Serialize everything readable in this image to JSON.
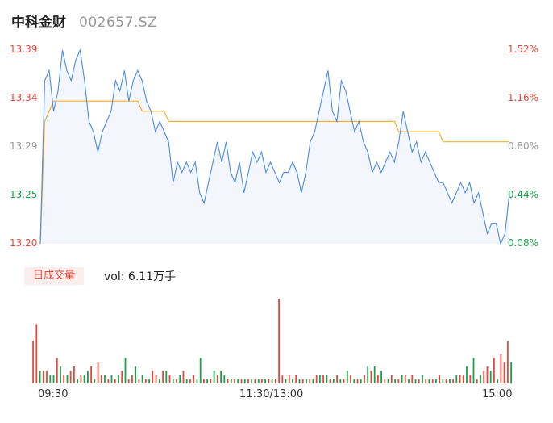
{
  "header": {
    "name": "中科金财",
    "code": "002657.SZ"
  },
  "price_axis": {
    "left_labels": [
      "13.39",
      "13.34",
      "13.29",
      "13.25",
      "13.20"
    ],
    "right_labels": [
      "1.52%",
      "1.16%",
      "0.80%",
      "0.44%",
      "0.08%"
    ],
    "colors": [
      "#e8483a",
      "#e8483a",
      "#999999",
      "#16a34a",
      "#e8483a"
    ],
    "right_colors": [
      "#e8483a",
      "#e8483a",
      "#999999",
      "#16a34a",
      "#16a34a"
    ]
  },
  "volume": {
    "tab_label": "日成交量",
    "summary": "vol: 6.11万手"
  },
  "time_axis": [
    "09:30",
    "11:30/13:00",
    "15:00"
  ],
  "colors": {
    "up": "#e8483a",
    "down": "#16a34a",
    "price_line": "#4a8ce8",
    "avg_line": "#f0b232",
    "area": "#f3f6fd"
  },
  "chart_data": [
    {
      "type": "line",
      "y_axis_ticks": [
        13.39,
        13.34,
        13.29,
        13.25,
        13.2
      ],
      "y_axis_pct_ticks": [
        "1.52%",
        "1.16%",
        "0.80%",
        "0.44%",
        "0.08%"
      ],
      "ylim": [
        13.2,
        13.39
      ],
      "x_ticks": [
        "09:30",
        "11:30/13:00",
        "15:00"
      ],
      "series": [
        {
          "values": [
            13.2,
            13.36,
            13.37,
            13.33,
            13.35,
            13.39,
            13.37,
            13.36,
            13.38,
            13.39,
            13.36,
            13.32,
            13.31,
            13.29,
            13.31,
            13.32,
            13.33,
            13.36,
            13.35,
            13.37,
            13.34,
            13.36,
            13.37,
            13.36,
            13.34,
            13.33,
            13.31,
            13.32,
            13.31,
            13.3,
            13.26,
            13.28,
            13.27,
            13.28,
            13.27,
            13.28,
            13.25,
            13.24,
            13.26,
            13.28,
            13.3,
            13.28,
            13.3,
            13.27,
            13.26,
            13.28,
            13.25,
            13.27,
            13.29,
            13.28,
            13.29,
            13.27,
            13.28,
            13.27,
            13.26,
            13.27,
            13.27,
            13.28,
            13.27,
            13.25,
            13.27,
            13.3,
            13.31,
            13.33,
            13.35,
            13.37,
            13.33,
            13.32,
            13.36,
            13.35,
            13.33,
            13.31,
            13.32,
            13.3,
            13.29,
            13.27,
            13.28,
            13.27,
            13.28,
            13.29,
            13.28,
            13.3,
            13.33,
            13.31,
            13.29,
            13.3,
            13.28,
            13.29,
            13.28,
            13.27,
            13.26,
            13.26,
            13.25,
            13.24,
            13.25,
            13.26,
            13.25,
            13.26,
            13.24,
            13.25,
            13.23,
            13.21,
            13.22,
            13.22,
            13.2,
            13.21,
            13.25
          ]
        },
        {
          "values": [
            13.2,
            13.32,
            13.33,
            13.34,
            13.34,
            13.34,
            13.34,
            13.34,
            13.34,
            13.34,
            13.34,
            13.34,
            13.34,
            13.34,
            13.34,
            13.34,
            13.34,
            13.34,
            13.34,
            13.34,
            13.34,
            13.34,
            13.34,
            13.33,
            13.33,
            13.33,
            13.33,
            13.33,
            13.33,
            13.32,
            13.32,
            13.32,
            13.32,
            13.32,
            13.32,
            13.32,
            13.32,
            13.32,
            13.32,
            13.32,
            13.32,
            13.32,
            13.32,
            13.32,
            13.32,
            13.32,
            13.32,
            13.32,
            13.32,
            13.32,
            13.32,
            13.32,
            13.32,
            13.32,
            13.32,
            13.32,
            13.32,
            13.32,
            13.32,
            13.32,
            13.32,
            13.32,
            13.32,
            13.32,
            13.32,
            13.32,
            13.32,
            13.32,
            13.32,
            13.32,
            13.32,
            13.32,
            13.32,
            13.32,
            13.32,
            13.32,
            13.32,
            13.32,
            13.32,
            13.32,
            13.32,
            13.31,
            13.31,
            13.31,
            13.31,
            13.31,
            13.31,
            13.31,
            13.31,
            13.31,
            13.31,
            13.3,
            13.3,
            13.3,
            13.3,
            13.3,
            13.3,
            13.3,
            13.3,
            13.3,
            13.3,
            13.3,
            13.3,
            13.3,
            13.3,
            13.3,
            13.3
          ]
        }
      ]
    },
    {
      "type": "bar",
      "x_ticks": [
        "09:30",
        "11:30/13:00",
        "15:00"
      ],
      "values": [
        10,
        14,
        3,
        3,
        3,
        2,
        2,
        6,
        4,
        2,
        2,
        3,
        4,
        1,
        2,
        2,
        3,
        4,
        1,
        5,
        2,
        2,
        1,
        2,
        1,
        2,
        3,
        6,
        1,
        2,
        4,
        1,
        2,
        1,
        1,
        3,
        2,
        1,
        3,
        3,
        2,
        1,
        1,
        2,
        3,
        1,
        1,
        2,
        1,
        6,
        1,
        1,
        1,
        3,
        2,
        3,
        2,
        1,
        1,
        1,
        1,
        1,
        1,
        1,
        1,
        1,
        1,
        1,
        1,
        1,
        1,
        1,
        20,
        2,
        1,
        2,
        1,
        2,
        1,
        1,
        1,
        1,
        1,
        2,
        2,
        2,
        2,
        1,
        1,
        2,
        1,
        1,
        3,
        2,
        1,
        1,
        1,
        2,
        4,
        3,
        4,
        2,
        3,
        1,
        1,
        2,
        1,
        1,
        2,
        2,
        1,
        2,
        1,
        1,
        2,
        1,
        1,
        1,
        1,
        2,
        1,
        1,
        1,
        1,
        2,
        2,
        2,
        4,
        2,
        6,
        1,
        2,
        3,
        4,
        3,
        6,
        1,
        7,
        5,
        10,
        5
      ],
      "colors": [
        "up",
        "up",
        "down",
        "up",
        "up",
        "down",
        "down",
        "up",
        "down",
        "up",
        "down",
        "up",
        "up",
        "down",
        "up",
        "down",
        "down",
        "up",
        "down",
        "up",
        "up",
        "down",
        "up",
        "down",
        "up",
        "down",
        "up",
        "down",
        "up",
        "up",
        "down",
        "up",
        "down",
        "up",
        "down",
        "up",
        "up",
        "down",
        "up",
        "down",
        "up",
        "down",
        "up",
        "down",
        "up",
        "down",
        "up",
        "up",
        "down",
        "down",
        "up",
        "down",
        "up",
        "down",
        "up",
        "down",
        "down",
        "up",
        "down",
        "up",
        "down",
        "up",
        "down",
        "up",
        "down",
        "up",
        "down",
        "up",
        "down",
        "up",
        "down",
        "up",
        "up",
        "up",
        "down",
        "up",
        "down",
        "up",
        "down",
        "up",
        "down",
        "up",
        "down",
        "up",
        "down",
        "up",
        "down",
        "up",
        "down",
        "up",
        "down",
        "up",
        "down",
        "up",
        "down",
        "up",
        "down",
        "up",
        "down",
        "up",
        "down",
        "up",
        "down",
        "up",
        "down",
        "up",
        "down",
        "up",
        "down",
        "up",
        "down",
        "up",
        "down",
        "up",
        "down",
        "up",
        "down",
        "up",
        "down",
        "up",
        "down",
        "up",
        "down",
        "up",
        "down",
        "up",
        "up",
        "down",
        "up",
        "down",
        "up",
        "down",
        "up",
        "up",
        "down",
        "up",
        "down",
        "up",
        "up",
        "up",
        "down"
      ]
    }
  ]
}
